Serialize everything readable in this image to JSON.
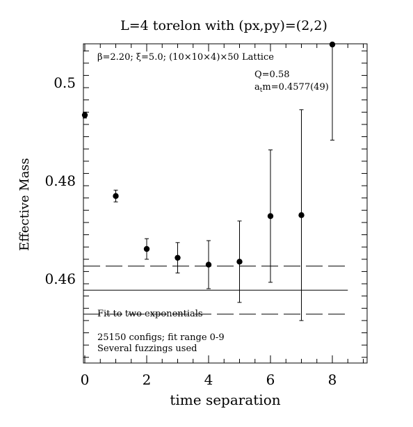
{
  "chart_data": {
    "type": "scatter",
    "title": "L=4 torelon with (px,py)=(2,2)",
    "xlabel": "time separation",
    "ylabel": "Effective Mass",
    "xlim": [
      0,
      9
    ],
    "ylim": [
      0.443,
      0.508
    ],
    "xticks": [
      0,
      2,
      4,
      6,
      8
    ],
    "xtick_labels": [
      "0",
      "2",
      "4",
      "6",
      "8"
    ],
    "yticks": [
      0.46,
      0.48,
      0.5
    ],
    "ytick_labels": [
      "0.46",
      "0.48",
      "0.5"
    ],
    "lattice_info": "β=2.20; ξ=5.0; (10×10×4)×50 Lattice",
    "fit_quality": "Q=0.58",
    "fit_result_prefix": "a",
    "fit_result_sub": "t",
    "fit_result_suffix": "m=0.4577(49)",
    "fit_label": "Fit to two exponentials",
    "configs_note": "25150 configs; fit range 0-9",
    "fuzzing_note": "Several fuzzings used",
    "points": [
      {
        "x": 0,
        "y": 0.4934,
        "err": 0.0006
      },
      {
        "x": 1,
        "y": 0.4769,
        "err": 0.0012
      },
      {
        "x": 2,
        "y": 0.4661,
        "err": 0.0021
      },
      {
        "x": 3,
        "y": 0.4643,
        "err": 0.0031
      },
      {
        "x": 4,
        "y": 0.4629,
        "err": 0.0049
      },
      {
        "x": 5,
        "y": 0.4635,
        "err": 0.0083
      },
      {
        "x": 6,
        "y": 0.4728,
        "err": 0.0135
      },
      {
        "x": 7,
        "y": 0.473,
        "err": 0.0215
      },
      {
        "x": 8,
        "y": 0.5078,
        "err": 0.0195
      }
    ],
    "fit": {
      "central": 0.4577,
      "upper": 0.4626,
      "lower": 0.4528,
      "x_range": [
        0,
        8.5
      ]
    },
    "grid": false
  }
}
